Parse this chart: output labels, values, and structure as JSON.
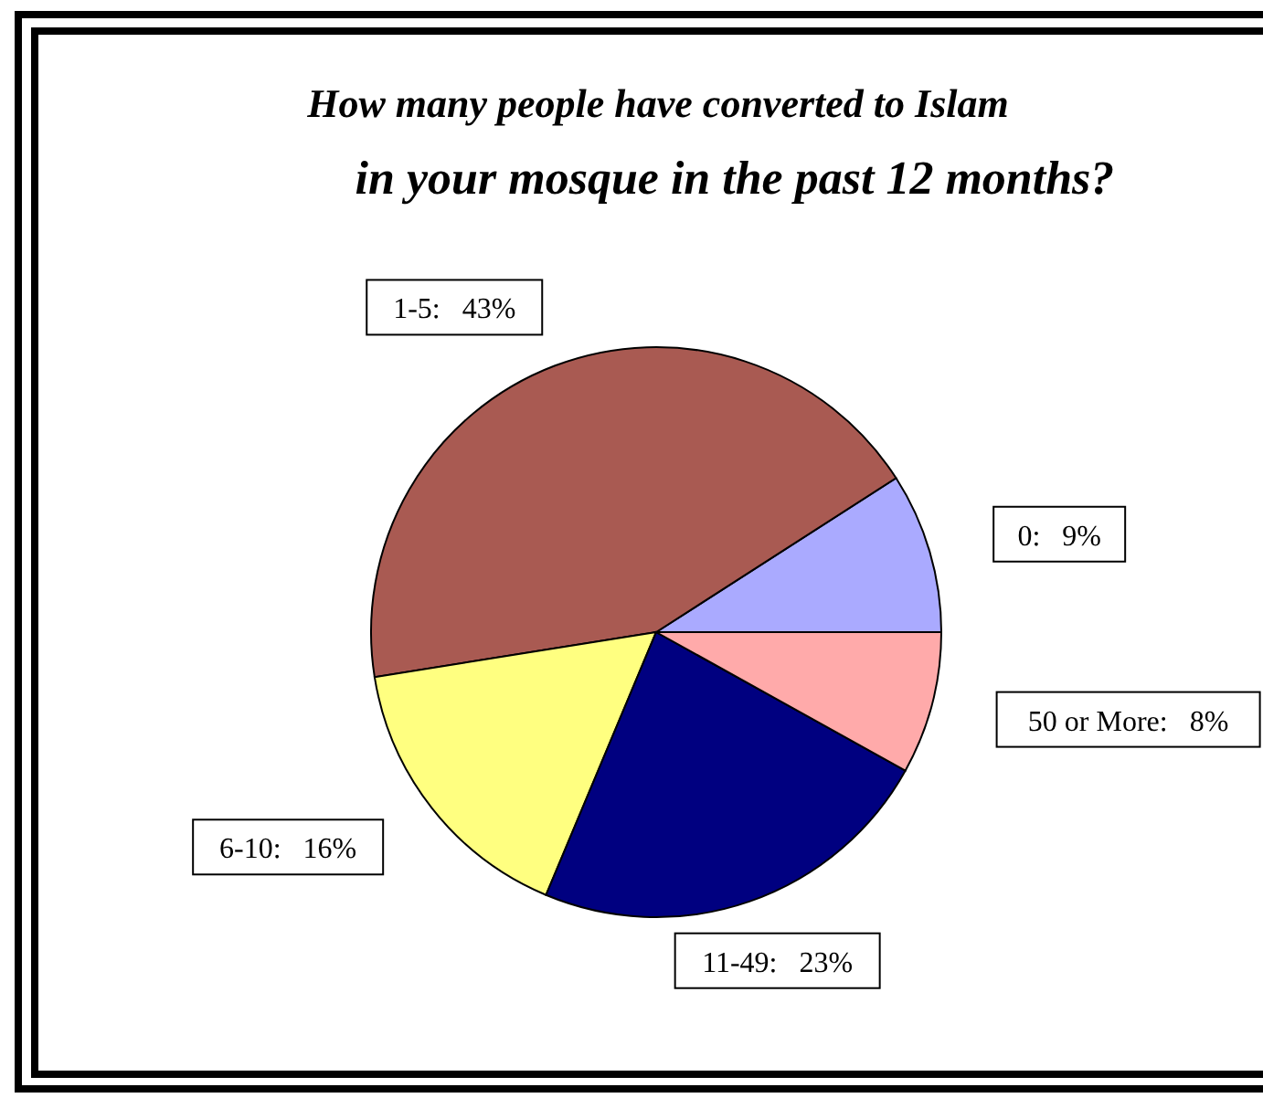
{
  "chart_data": {
    "type": "pie",
    "title": "How many people have converted to Islam\nin your mosque in the past 12 months?",
    "categories": [
      "0",
      "1-5",
      "6-10",
      "11-49",
      "50 or More"
    ],
    "values": [
      9,
      43,
      16,
      23,
      8
    ],
    "value_labels": [
      "9%",
      "43%",
      "16%",
      "23%",
      "8%"
    ],
    "colors": [
      "#aaaaff",
      "#a95a52",
      "#ffff80",
      "#000080",
      "#ffaaaa"
    ]
  }
}
